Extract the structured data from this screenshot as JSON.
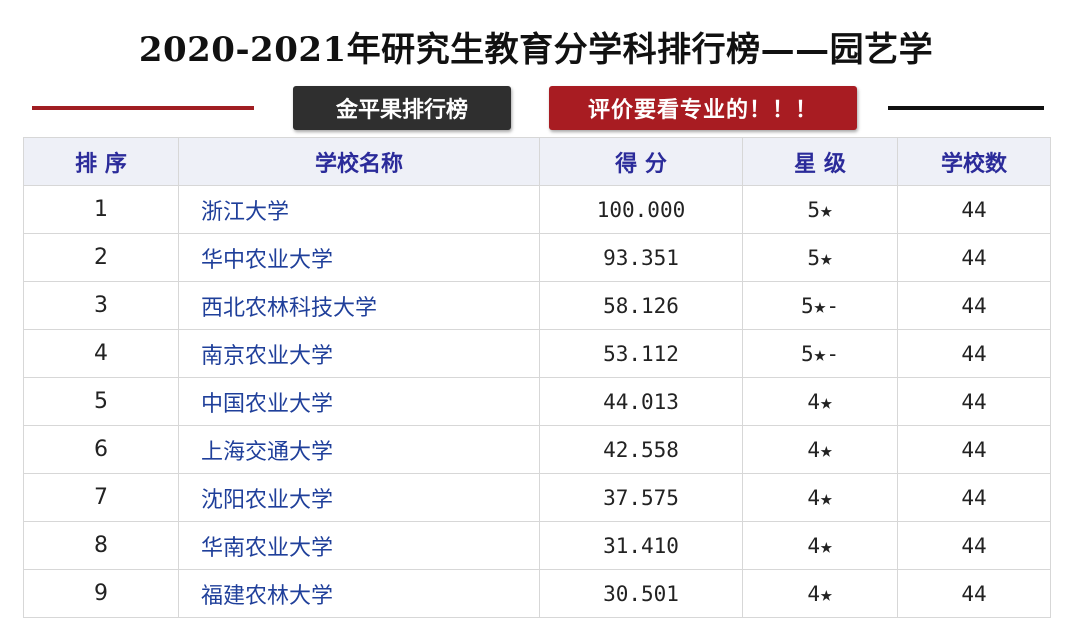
{
  "title": "2020-2021年研究生教育分学科排行榜——园艺学",
  "badges": {
    "left": "金平果排行榜",
    "right": "评价要看专业的！！！"
  },
  "colors": {
    "rule_left": "#a01e22",
    "rule_right": "#111111",
    "badge_left": "#2f2f2f",
    "badge_right": "#a81c22"
  },
  "table": {
    "headers": [
      "排 序",
      "学校名称",
      "得 分",
      "星 级",
      "学校数"
    ],
    "rows": [
      {
        "rank": "1",
        "name": "浙江大学",
        "score": "100.000",
        "star": "5★",
        "count": "44"
      },
      {
        "rank": "2",
        "name": "华中农业大学",
        "score": "93.351",
        "star": "5★",
        "count": "44"
      },
      {
        "rank": "3",
        "name": "西北农林科技大学",
        "score": "58.126",
        "star": "5★-",
        "count": "44"
      },
      {
        "rank": "4",
        "name": "南京农业大学",
        "score": "53.112",
        "star": "5★-",
        "count": "44"
      },
      {
        "rank": "5",
        "name": "中国农业大学",
        "score": "44.013",
        "star": "4★",
        "count": "44"
      },
      {
        "rank": "6",
        "name": "上海交通大学",
        "score": "42.558",
        "star": "4★",
        "count": "44"
      },
      {
        "rank": "7",
        "name": "沈阳农业大学",
        "score": "37.575",
        "star": "4★",
        "count": "44"
      },
      {
        "rank": "8",
        "name": "华南农业大学",
        "score": "31.410",
        "star": "4★",
        "count": "44"
      },
      {
        "rank": "9",
        "name": "福建农林大学",
        "score": "30.501",
        "star": "4★",
        "count": "44"
      }
    ]
  }
}
